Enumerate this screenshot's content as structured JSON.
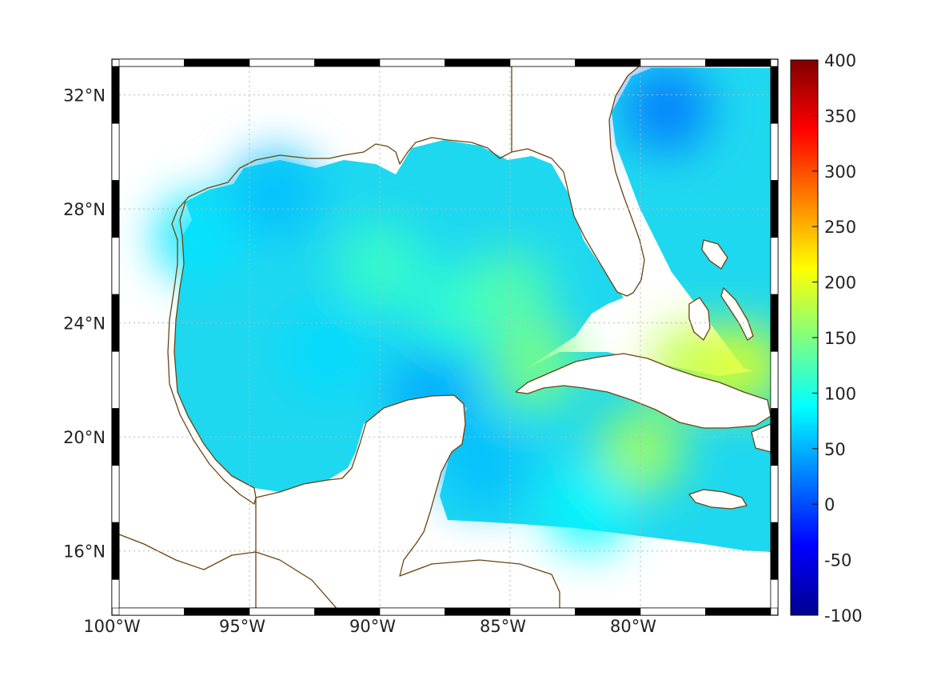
{
  "chart_data": {
    "type": "heatmap",
    "x_range": [
      -100,
      -75
    ],
    "y_range": [
      14,
      33
    ],
    "x_ticks": [
      {
        "value": -100,
        "label": "100°W"
      },
      {
        "value": -95,
        "label": "95°W"
      },
      {
        "value": -90,
        "label": "90°W"
      },
      {
        "value": -85,
        "label": "85°W"
      },
      {
        "value": -80,
        "label": "80°W"
      }
    ],
    "y_ticks": [
      {
        "value": 16,
        "label": "16°N"
      },
      {
        "value": 20,
        "label": "20°N"
      },
      {
        "value": 24,
        "label": "24°N"
      },
      {
        "value": 28,
        "label": "28°N"
      },
      {
        "value": 32,
        "label": "32°N"
      }
    ],
    "grid": true,
    "colormap": "jet",
    "colorbar": {
      "range": [
        -100,
        400
      ],
      "ticks": [
        {
          "value": 400,
          "label": "400"
        },
        {
          "value": 350,
          "label": "350"
        },
        {
          "value": 300,
          "label": "300"
        },
        {
          "value": 250,
          "label": "250"
        },
        {
          "value": 200,
          "label": "200"
        },
        {
          "value": 150,
          "label": "150"
        },
        {
          "value": 100,
          "label": "100"
        },
        {
          "value": 50,
          "label": "50"
        },
        {
          "value": 0,
          "label": "0"
        },
        {
          "value": -50,
          "label": "-50"
        },
        {
          "value": -100,
          "label": "-100"
        }
      ]
    },
    "field_samples": [
      {
        "lon": -97,
        "lat": 27,
        "value": 75
      },
      {
        "lon": -94,
        "lat": 28.5,
        "value": 55
      },
      {
        "lon": -90,
        "lat": 26,
        "value": 115
      },
      {
        "lon": -92,
        "lat": 23,
        "value": 70
      },
      {
        "lon": -87,
        "lat": 24.5,
        "value": 110
      },
      {
        "lon": -85,
        "lat": 25,
        "value": 130
      },
      {
        "lon": -84,
        "lat": 22.5,
        "value": 150
      },
      {
        "lon": -80,
        "lat": 19.5,
        "value": 170
      },
      {
        "lon": -78,
        "lat": 22.5,
        "value": 180
      },
      {
        "lon": -76,
        "lat": 22.5,
        "value": 195
      },
      {
        "lon": -79,
        "lat": 31.5,
        "value": 20
      },
      {
        "lon": -86,
        "lat": 19,
        "value": 55
      },
      {
        "lon": -88,
        "lat": 21.5,
        "value": 45
      },
      {
        "lon": -82,
        "lat": 17.5,
        "value": 85
      }
    ],
    "colors": {
      "land": "#ffffff",
      "coastline": "#6b4410",
      "field_base": "#1ed8f0",
      "frame_dark": "#000000",
      "frame_light": "#ffffff",
      "grid": "#b8b8b8"
    }
  }
}
